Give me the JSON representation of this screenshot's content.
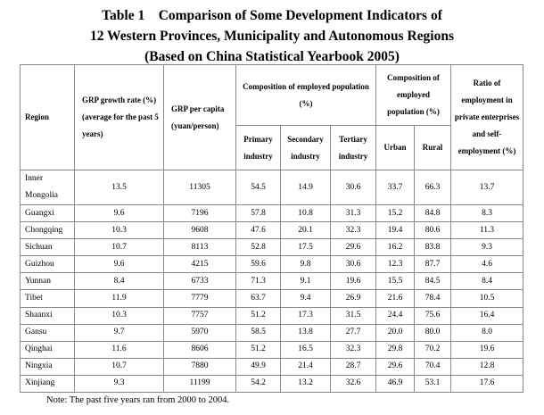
{
  "title": {
    "line1": "Table 1    Comparison of Some Development Indicators of",
    "line2": "12 Western Provinces, Municipality and Autonomous Regions",
    "line3": "(Based on China Statistical Yearbook 2005)"
  },
  "headers": {
    "region": "Region",
    "growth": "GRP growth rate (%) (average for the past 5 years)",
    "per_capita": "GRP per capita (yuan/person)",
    "employed": "Composition of employed population (%)",
    "primary": "Primary industry",
    "secondary": "Secondary industry",
    "tertiary": "Tertiary industry",
    "employed2": "Composition of employed population (%)",
    "urban": "Urban",
    "rural": "Rural",
    "private": "Ratio of employment in private enterprises and self-employment (%)"
  },
  "rows": [
    [
      "Inner Mongolia",
      "13.5",
      "11305",
      "54.5",
      "14.9",
      "30.6",
      "33.7",
      "66.3",
      "13.7"
    ],
    [
      "Guangxi",
      "9.6",
      "7196",
      "57.8",
      "10.8",
      "31.3",
      "15.2",
      "84.8",
      "8.3"
    ],
    [
      "Chongqing",
      "10.3",
      "9608",
      "47.6",
      "20.1",
      "32.3",
      "19.4",
      "80.6",
      "11.3"
    ],
    [
      "Sichuan",
      "10.7",
      "8113",
      "52.8",
      "17.5",
      "29.6",
      "16.2",
      "83.8",
      "9.3"
    ],
    [
      "Guizhou",
      "9.6",
      "4215",
      "59.6",
      "9.8",
      "30.6",
      "12.3",
      "87.7",
      "4.6"
    ],
    [
      "Yunnan",
      "8.4",
      "6733",
      "71.3",
      "9.1",
      "19.6",
      "15.5",
      "84.5",
      "8.4"
    ],
    [
      "Tibet",
      "11.9",
      "7779",
      "63.7",
      "9.4",
      "26.9",
      "21.6",
      "78.4",
      "10.5"
    ],
    [
      "Shaanxi",
      "10.3",
      "7757",
      "51.2",
      "17.3",
      "31.5",
      "24.4",
      "75.6",
      "16.4"
    ],
    [
      "Gansu",
      "9.7",
      "5970",
      "58.5",
      "13.8",
      "27.7",
      "20.0",
      "80.0",
      "8.0"
    ],
    [
      "Qinghai",
      "11.6",
      "8606",
      "51.2",
      "16.5",
      "32.3",
      "29.8",
      "70.2",
      "19.6"
    ],
    [
      "Ningxia",
      "10.7",
      "7880",
      "49.9",
      "21.4",
      "28.7",
      "29.6",
      "70.4",
      "12.8"
    ],
    [
      "Xinjiang",
      "9.3",
      "11199",
      "54.2",
      "13.2",
      "32.6",
      "46.9",
      "53.1",
      "17.6"
    ]
  ],
  "note": "Note: The past five years ran from 2000 to 2004."
}
